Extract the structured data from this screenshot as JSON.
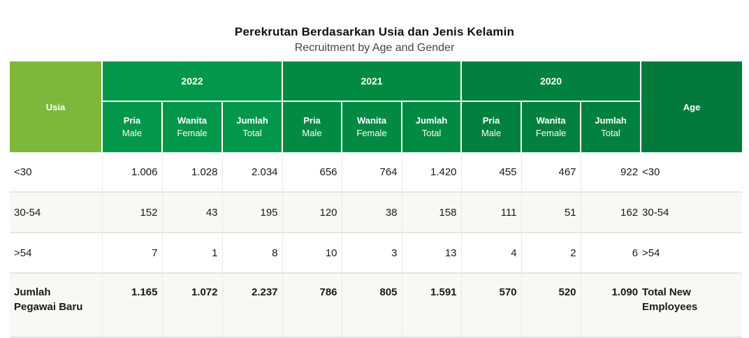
{
  "title": "Perekrutan Berdasarkan Usia dan Jenis Kelamin",
  "subtitle": "Recruitment by Age and Gender",
  "header": {
    "usia": "Usia",
    "age": "Age",
    "years": [
      "2022",
      "2021",
      "2020"
    ],
    "sub": [
      {
        "id": "Pria",
        "en": "Male"
      },
      {
        "id": "Wanita",
        "en": "Female"
      },
      {
        "id": "Jumlah",
        "en": "Total"
      }
    ]
  },
  "rows": [
    {
      "usia": "<30",
      "age": "<30",
      "values": [
        "1.006",
        "1.028",
        "2.034",
        "656",
        "764",
        "1.420",
        "455",
        "467",
        "922"
      ]
    },
    {
      "usia": "30-54",
      "age": "30-54",
      "values": [
        "152",
        "43",
        "195",
        "120",
        "38",
        "158",
        "111",
        "51",
        "162"
      ]
    },
    {
      "usia": ">54",
      "age": ">54",
      "values": [
        "7",
        "1",
        "8",
        "10",
        "3",
        "13",
        "4",
        "2",
        "6"
      ]
    }
  ],
  "total": {
    "usia_line1": "Jumlah",
    "usia_line2": "Pegawai Baru",
    "age_line1": "Total New",
    "age_line2": "Employees",
    "values": [
      "1.165",
      "1.072",
      "2.237",
      "786",
      "805",
      "1.591",
      "570",
      "520",
      "1.090"
    ]
  }
}
